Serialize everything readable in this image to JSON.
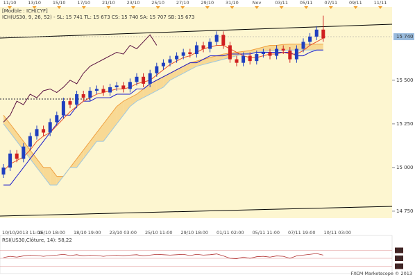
{
  "chart_data": [
    {
      "type": "candlestick",
      "title": "[Modble : ICH(CYF]",
      "subtitle": "ICH(US30, 9, 26, 52) - SL: 15 741  TL: 15 673  CS: 15 740  SA: 15 707  SB: 15 673",
      "top_labels": [
        "11/10",
        "13/10",
        "15/10",
        "17/10",
        "21/10",
        "23/10",
        "25/10",
        "27/10",
        "29/10",
        "31/10",
        "Nov",
        "03/11",
        "05/11",
        "07/11",
        "09/11",
        "11/11"
      ],
      "bottom_labels": [
        "10/10/2013 11:00",
        "16/10 18:00",
        "18/10 19:00",
        "23/10 03:00",
        "25/10 11:00",
        "29/10 18:00",
        "01/11 02:00",
        "05/11 11:00",
        "07/11 19:00",
        "10/11 03:00"
      ],
      "last_price_label": "15 740",
      "ylim": [
        14710,
        15920
      ],
      "yticks": [
        {
          "value": 14750,
          "label": "14 750"
        },
        {
          "value": 15000,
          "label": "15 000"
        },
        {
          "value": 15250,
          "label": "15 250"
        },
        {
          "value": 15500,
          "label": "15 500"
        }
      ],
      "up_color": "#1f3fbf",
      "down_color": "#d02020",
      "open": [
        14960,
        15000,
        15080,
        15050,
        15120,
        15180,
        15220,
        15200,
        15260,
        15300,
        15380,
        15360,
        15420,
        15400,
        15440,
        15450,
        15430,
        15460,
        15470,
        15450,
        15490,
        15520,
        15480,
        15540,
        15580,
        15600,
        15620,
        15640,
        15660,
        15650,
        15700,
        15680,
        15720,
        15760,
        15700,
        15620,
        15600,
        15640,
        15610,
        15650,
        15660,
        15640,
        15680,
        15670,
        15620,
        15680,
        15720,
        15750,
        15790
      ],
      "high": [
        15020,
        15100,
        15100,
        15140,
        15200,
        15240,
        15240,
        15280,
        15320,
        15400,
        15400,
        15440,
        15440,
        15460,
        15470,
        15470,
        15480,
        15490,
        15490,
        15510,
        15540,
        15540,
        15560,
        15600,
        15620,
        15640,
        15660,
        15680,
        15680,
        15720,
        15720,
        15740,
        15780,
        15780,
        15720,
        15640,
        15660,
        15660,
        15670,
        15680,
        15680,
        15700,
        15700,
        15690,
        15700,
        15740,
        15770,
        15810,
        15870
      ],
      "low": [
        14940,
        14980,
        15030,
        15030,
        15100,
        15160,
        15180,
        15180,
        15240,
        15280,
        15340,
        15340,
        15380,
        15380,
        15420,
        15410,
        15410,
        15440,
        15430,
        15430,
        15470,
        15460,
        15460,
        15520,
        15560,
        15580,
        15600,
        15620,
        15630,
        15630,
        15660,
        15660,
        15700,
        15680,
        15600,
        15580,
        15580,
        15590,
        15590,
        15630,
        15620,
        15620,
        15650,
        15600,
        15600,
        15660,
        15700,
        15730,
        15720
      ],
      "close": [
        15000,
        15080,
        15050,
        15120,
        15180,
        15220,
        15200,
        15260,
        15300,
        15380,
        15360,
        15420,
        15400,
        15440,
        15450,
        15430,
        15460,
        15470,
        15450,
        15490,
        15520,
        15480,
        15540,
        15580,
        15600,
        15620,
        15640,
        15660,
        15650,
        15700,
        15680,
        15720,
        15760,
        15700,
        15620,
        15600,
        15640,
        15610,
        15650,
        15660,
        15640,
        15680,
        15670,
        15620,
        15680,
        15720,
        15750,
        15790,
        15740
      ],
      "cloud_color": "#f7d38a",
      "cloud_color2": "#b8dcc8",
      "series": [
        {
          "role": "span-a",
          "color": "#f0a040",
          "values": [
            15300,
            15250,
            15200,
            15150,
            15100,
            15050,
            15000,
            15000,
            14950,
            14950,
            15000,
            15050,
            15100,
            15150,
            15200,
            15250,
            15300,
            15350,
            15380,
            15400,
            15420,
            15450,
            15480,
            15500,
            15520,
            15540,
            15560,
            15580,
            15600,
            15610,
            15620,
            15630,
            15640,
            15650,
            15655,
            15660,
            15665,
            15670,
            15680,
            15690,
            15700,
            15700,
            15705,
            15707,
            15707,
            15707,
            15707,
            15707,
            15707
          ]
        },
        {
          "role": "span-b",
          "color": "#9cc7e0",
          "values": [
            15250,
            15200,
            15150,
            15100,
            15050,
            15000,
            14950,
            14900,
            14900,
            14950,
            15000,
            15000,
            15050,
            15100,
            15150,
            15150,
            15200,
            15250,
            15300,
            15350,
            15380,
            15400,
            15420,
            15440,
            15460,
            15500,
            15520,
            15540,
            15560,
            15580,
            15590,
            15600,
            15610,
            15620,
            15630,
            15640,
            15650,
            15655,
            15660,
            15665,
            15668,
            15670,
            15672,
            15673,
            15673,
            15673,
            15673,
            15673,
            15673
          ]
        },
        {
          "role": "line",
          "color": "#1a1acc",
          "values": [
            14900,
            14900,
            14950,
            15000,
            15050,
            15100,
            15150,
            15200,
            15250,
            15300,
            15300,
            15350,
            15380,
            15380,
            15400,
            15400,
            15400,
            15420,
            15420,
            15420,
            15450,
            15450,
            15480,
            15500,
            15520,
            15540,
            15560,
            15580,
            15600,
            15600,
            15620,
            15640,
            15640,
            15640,
            15650,
            15650,
            15650,
            15650,
            15660,
            15660,
            15660,
            15660,
            15660,
            15660,
            15640,
            15640,
            15660,
            15673,
            15673
          ]
        },
        {
          "role": "line",
          "color": "#e8502a",
          "values": [
            14980,
            15020,
            15040,
            15060,
            15100,
            15150,
            15180,
            15200,
            15240,
            15280,
            15320,
            15350,
            15380,
            15400,
            15420,
            15430,
            15440,
            15450,
            15450,
            15460,
            15480,
            15490,
            15500,
            15530,
            15560,
            15590,
            15610,
            15630,
            15640,
            15660,
            15680,
            15690,
            15700,
            15700,
            15680,
            15660,
            15640,
            15630,
            15630,
            15640,
            15650,
            15650,
            15660,
            15650,
            15650,
            15670,
            15700,
            15720,
            15741
          ]
        },
        {
          "role": "line",
          "color": "#5a1040",
          "values": [
            15260,
            15300,
            15380,
            15360,
            15420,
            15400,
            15440,
            15450,
            15430,
            15460,
            15500,
            15480,
            15540,
            15580,
            15600,
            15620,
            15640,
            15660,
            15650,
            15700,
            15680,
            15720,
            15760,
            15700,
            null,
            null,
            null,
            null,
            null,
            null,
            null,
            null,
            null,
            null,
            null,
            null,
            null,
            null,
            null,
            null,
            null,
            null,
            null,
            null,
            null,
            null,
            null,
            null,
            null
          ]
        }
      ]
    },
    {
      "type": "line",
      "title": "RSI(US30,Clôture, 14): 58,22",
      "footer": "FXCM Marketscope © 2013",
      "ylim": [
        10,
        90
      ],
      "yticks": [
        30,
        50,
        70
      ],
      "series": [
        {
          "color": "#b03030",
          "values": [
            52,
            55,
            53,
            56,
            58,
            57,
            55,
            57,
            58,
            60,
            57,
            59,
            56,
            58,
            57,
            55,
            57,
            58,
            56,
            58,
            59,
            56,
            58,
            60,
            59,
            58,
            59,
            60,
            57,
            60,
            58,
            59,
            61,
            56,
            50,
            49,
            53,
            50,
            54,
            55,
            53,
            56,
            55,
            50,
            56,
            58,
            60,
            62,
            58
          ]
        }
      ]
    }
  ]
}
